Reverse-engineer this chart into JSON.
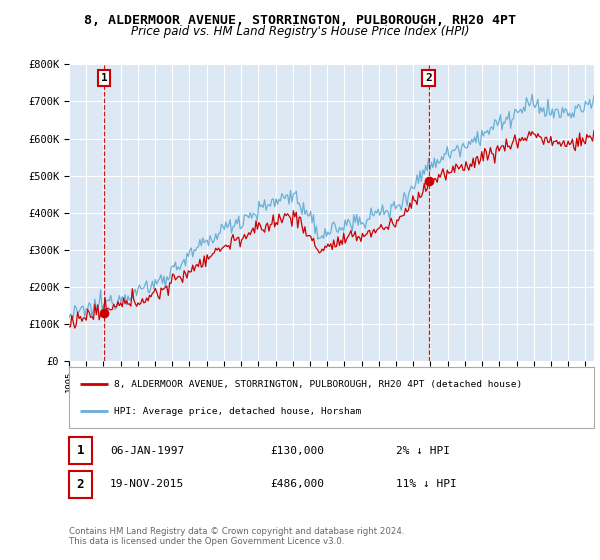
{
  "title": "8, ALDERMOOR AVENUE, STORRINGTON, PULBOROUGH, RH20 4PT",
  "subtitle": "Price paid vs. HM Land Registry's House Price Index (HPI)",
  "legend_line1": "8, ALDERMOOR AVENUE, STORRINGTON, PULBOROUGH, RH20 4PT (detached house)",
  "legend_line2": "HPI: Average price, detached house, Horsham",
  "annotation1_date": "06-JAN-1997",
  "annotation1_price": "£130,000",
  "annotation1_hpi": "2% ↓ HPI",
  "annotation2_date": "19-NOV-2015",
  "annotation2_price": "£486,000",
  "annotation2_hpi": "11% ↓ HPI",
  "footnote": "Contains HM Land Registry data © Crown copyright and database right 2024.\nThis data is licensed under the Open Government Licence v3.0.",
  "ylim": [
    0,
    800000
  ],
  "yticks": [
    0,
    100000,
    200000,
    300000,
    400000,
    500000,
    600000,
    700000,
    800000
  ],
  "ytick_labels": [
    "£0",
    "£100K",
    "£200K",
    "£300K",
    "£400K",
    "£500K",
    "£600K",
    "£700K",
    "£800K"
  ],
  "hpi_color": "#6baed6",
  "price_color": "#cc0000",
  "background_color": "#ffffff",
  "plot_bg_color": "#dce9f5",
  "grid_color": "#ffffff",
  "sale1_year": 1997.03,
  "sale1_price": 130000,
  "sale2_year": 2015.89,
  "sale2_price": 486000,
  "xlim_start": 1995,
  "xlim_end": 2025.5
}
